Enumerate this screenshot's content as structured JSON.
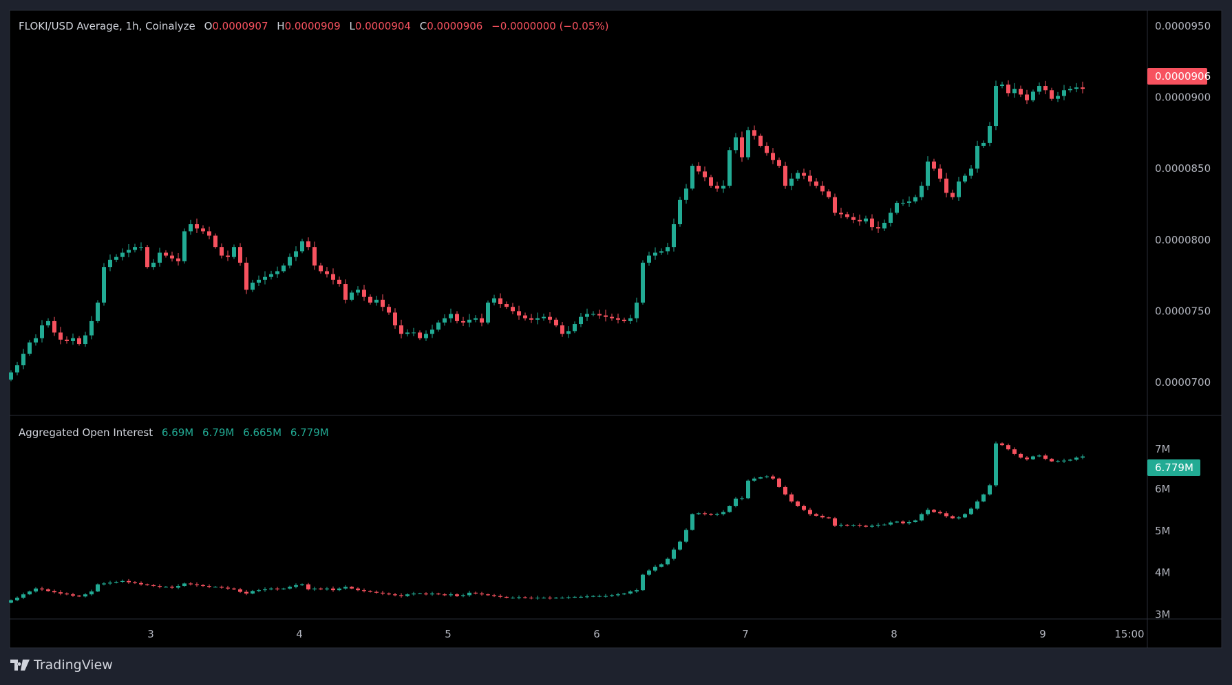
{
  "chart_data": [
    {
      "type": "candlestick",
      "title": "FLOKI/USD Average, 1h, Coinalyze",
      "ohlc_legend": {
        "o_label": "O",
        "o": "0.0000907",
        "h_label": "H",
        "h": "0.0000909",
        "l_label": "L",
        "l": "0.0000904",
        "c_label": "C",
        "c": "0.0000906",
        "change": "−0.0000000 (−0.05%)"
      },
      "value_unit": "1e-7 USD",
      "y_ticks": [
        "0.0000950",
        "0.0000900",
        "0.0000850",
        "0.0000800",
        "0.0000750",
        "0.0000700"
      ],
      "y_tick_values": [
        950,
        900,
        850,
        800,
        750,
        700
      ],
      "ylim": [
        690,
        960
      ],
      "last_price_label": "0.0000906",
      "closes": [
        707,
        712,
        720,
        728,
        731,
        740,
        743,
        735,
        730,
        729,
        731,
        727,
        733,
        743,
        756,
        781,
        786,
        788,
        791,
        793,
        795,
        795,
        781,
        784,
        791,
        789,
        787,
        785,
        806,
        811,
        808,
        806,
        803,
        795,
        789,
        788,
        795,
        784,
        765,
        770,
        772,
        774,
        776,
        778,
        782,
        788,
        792,
        799,
        795,
        782,
        778,
        776,
        772,
        769,
        758,
        763,
        765,
        760,
        756,
        758,
        753,
        749,
        740,
        734,
        735,
        735,
        731,
        734,
        737,
        742,
        745,
        748,
        743,
        742,
        744,
        745,
        742,
        756,
        759,
        755,
        753,
        750,
        747,
        745,
        744,
        745,
        746,
        744,
        740,
        734,
        736,
        741,
        746,
        748,
        748,
        747,
        746,
        745,
        744,
        743,
        745,
        756,
        784,
        789,
        791,
        792,
        795,
        811,
        828,
        836,
        852,
        848,
        844,
        838,
        836,
        838,
        863,
        872,
        858,
        877,
        873,
        866,
        861,
        856,
        852,
        838,
        843,
        847,
        845,
        841,
        838,
        834,
        830,
        819,
        818,
        816,
        814,
        813,
        815,
        809,
        808,
        812,
        819,
        826,
        826,
        827,
        830,
        838,
        855,
        850,
        843,
        833,
        830,
        841,
        845,
        850,
        866,
        868,
        880,
        908,
        909,
        903,
        906,
        902,
        898,
        904,
        908,
        905,
        899,
        901,
        905,
        906,
        907,
        906
      ]
    },
    {
      "type": "candlestick",
      "title": "Aggregated Open Interest",
      "legend_values": [
        "6.69M",
        "6.79M",
        "6.665M",
        "6.779M"
      ],
      "value_unit": "M",
      "y_ticks": [
        "7M",
        "6M",
        "5M",
        "4M",
        "3M"
      ],
      "y_tick_values": [
        7,
        6,
        5,
        4,
        3
      ],
      "ylim": [
        2.97,
        7.6
      ],
      "last_value_label": "6.779M",
      "closes": [
        3.34,
        3.4,
        3.48,
        3.55,
        3.62,
        3.6,
        3.56,
        3.53,
        3.5,
        3.48,
        3.45,
        3.43,
        3.48,
        3.55,
        3.72,
        3.74,
        3.76,
        3.78,
        3.8,
        3.77,
        3.75,
        3.72,
        3.7,
        3.68,
        3.66,
        3.66,
        3.64,
        3.68,
        3.74,
        3.72,
        3.7,
        3.68,
        3.66,
        3.66,
        3.64,
        3.62,
        3.6,
        3.54,
        3.5,
        3.56,
        3.58,
        3.6,
        3.62,
        3.6,
        3.62,
        3.66,
        3.7,
        3.72,
        3.6,
        3.62,
        3.6,
        3.62,
        3.58,
        3.62,
        3.66,
        3.62,
        3.58,
        3.56,
        3.54,
        3.52,
        3.5,
        3.48,
        3.46,
        3.44,
        3.48,
        3.5,
        3.5,
        3.48,
        3.5,
        3.48,
        3.46,
        3.48,
        3.44,
        3.46,
        3.52,
        3.5,
        3.48,
        3.46,
        3.44,
        3.42,
        3.4,
        3.4,
        3.41,
        3.4,
        3.39,
        3.4,
        3.4,
        3.39,
        3.4,
        3.4,
        3.41,
        3.42,
        3.42,
        3.43,
        3.44,
        3.44,
        3.44,
        3.46,
        3.48,
        3.5,
        3.55,
        3.58,
        3.95,
        4.05,
        4.14,
        4.2,
        4.33,
        4.55,
        4.74,
        5.02,
        5.4,
        5.42,
        5.4,
        5.38,
        5.4,
        5.45,
        5.59,
        5.77,
        5.78,
        6.2,
        6.25,
        6.28,
        6.3,
        6.25,
        6.05,
        5.87,
        5.7,
        5.59,
        5.5,
        5.4,
        5.36,
        5.32,
        5.3,
        5.12,
        5.14,
        5.12,
        5.13,
        5.12,
        5.1,
        5.12,
        5.14,
        5.15,
        5.2,
        5.22,
        5.18,
        5.21,
        5.25,
        5.4,
        5.5,
        5.45,
        5.42,
        5.35,
        5.3,
        5.32,
        5.4,
        5.53,
        5.7,
        5.87,
        6.09,
        7.09,
        7.05,
        6.95,
        6.84,
        6.75,
        6.71,
        6.78,
        6.8,
        6.72,
        6.66,
        6.66,
        6.68,
        6.7,
        6.75,
        6.779
      ]
    }
  ],
  "x_axis": {
    "ticks": [
      "3",
      "4",
      "5",
      "6",
      "7",
      "8",
      "9",
      "15:00"
    ],
    "tick_candle_index": [
      23,
      47,
      71,
      95,
      119,
      143,
      167,
      181
    ]
  },
  "colors": {
    "up": "#22ab94",
    "down": "#f7525f",
    "background": "#000000",
    "frame": "#1e222d",
    "grid": "#2a2e39",
    "text": "#b2b5be"
  },
  "branding": {
    "logo_text": "TradingView"
  }
}
